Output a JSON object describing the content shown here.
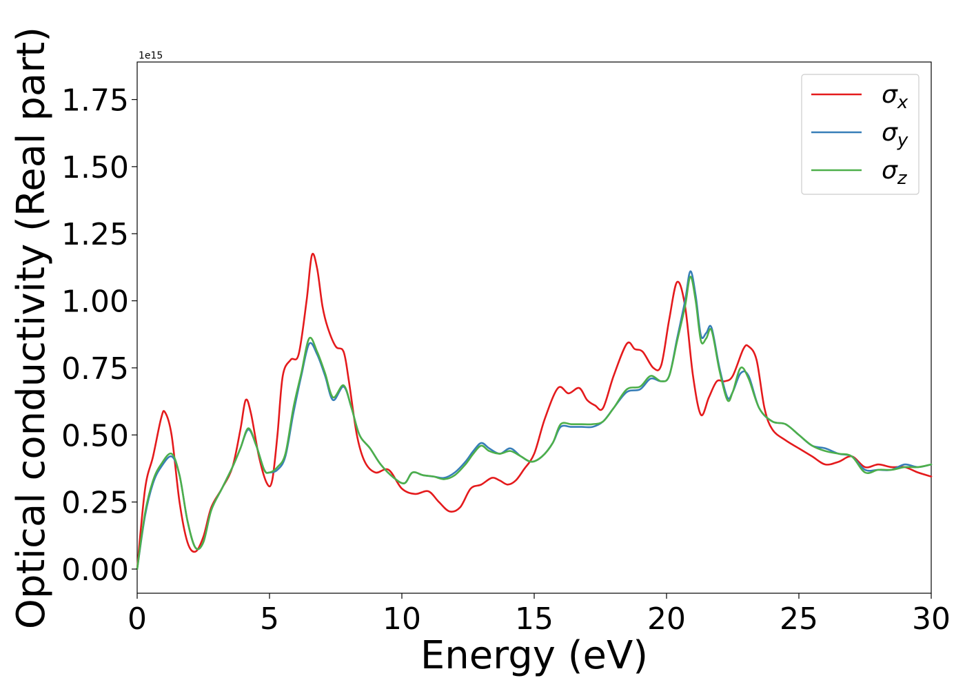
{
  "chart_data": {
    "type": "line",
    "xlabel": "Energy (eV)",
    "ylabel": "Optical conductivity (Real part)",
    "y_offset_label": "1e15",
    "xlim": [
      0,
      30
    ],
    "ylim": [
      -0.09,
      1.89
    ],
    "xticks": [
      0,
      5,
      10,
      15,
      20,
      25,
      30
    ],
    "xtick_labels": [
      "0",
      "5",
      "10",
      "15",
      "20",
      "25",
      "30"
    ],
    "yticks": [
      0.0,
      0.25,
      0.5,
      0.75,
      1.0,
      1.25,
      1.5,
      1.75
    ],
    "ytick_labels": [
      "0.00",
      "0.25",
      "0.50",
      "0.75",
      "1.00",
      "1.25",
      "1.50",
      "1.75"
    ],
    "grid": false,
    "legend_position": "top-right",
    "series": [
      {
        "name": "σ",
        "subscript": "x",
        "color": "#e41a1c",
        "x": [
          0,
          0.3,
          0.6,
          0.9,
          1.05,
          1.3,
          1.6,
          1.9,
          2.2,
          2.5,
          2.8,
          3.2,
          3.6,
          3.9,
          4.1,
          4.3,
          4.6,
          4.9,
          5.1,
          5.3,
          5.5,
          5.8,
          6.1,
          6.4,
          6.6,
          6.8,
          7.0,
          7.2,
          7.5,
          7.8,
          8.0,
          8.3,
          8.6,
          9.0,
          9.5,
          10.0,
          10.5,
          11.0,
          11.4,
          11.8,
          12.2,
          12.6,
          13.0,
          13.4,
          13.7,
          14.0,
          14.3,
          14.6,
          15.0,
          15.4,
          15.9,
          16.3,
          16.7,
          17.0,
          17.3,
          17.6,
          18.0,
          18.5,
          18.8,
          19.1,
          19.5,
          19.8,
          20.1,
          20.4,
          20.7,
          21.0,
          21.3,
          21.6,
          21.9,
          22.2,
          22.5,
          22.9,
          23.1,
          23.4,
          23.7,
          24.0,
          24.5,
          25.0,
          25.5,
          26.0,
          26.5,
          27.0,
          27.5,
          28.0,
          28.5,
          29.0,
          29.5,
          30.0
        ],
        "y": [
          0.0,
          0.3,
          0.42,
          0.56,
          0.585,
          0.5,
          0.25,
          0.1,
          0.065,
          0.12,
          0.23,
          0.3,
          0.38,
          0.52,
          0.63,
          0.58,
          0.42,
          0.32,
          0.33,
          0.5,
          0.72,
          0.78,
          0.8,
          1.0,
          1.17,
          1.12,
          0.98,
          0.9,
          0.83,
          0.81,
          0.7,
          0.5,
          0.4,
          0.36,
          0.37,
          0.3,
          0.28,
          0.29,
          0.25,
          0.215,
          0.23,
          0.3,
          0.315,
          0.34,
          0.33,
          0.315,
          0.33,
          0.37,
          0.43,
          0.56,
          0.675,
          0.655,
          0.675,
          0.63,
          0.61,
          0.6,
          0.72,
          0.84,
          0.82,
          0.81,
          0.75,
          0.76,
          0.93,
          1.07,
          0.98,
          0.72,
          0.575,
          0.64,
          0.7,
          0.7,
          0.72,
          0.82,
          0.83,
          0.78,
          0.6,
          0.52,
          0.48,
          0.45,
          0.42,
          0.39,
          0.4,
          0.42,
          0.38,
          0.39,
          0.38,
          0.38,
          0.36,
          0.345
        ]
      },
      {
        "name": "σ",
        "subscript": "y",
        "color": "#377eb8",
        "x": [
          0,
          0.3,
          0.6,
          0.9,
          1.3,
          1.6,
          1.9,
          2.2,
          2.5,
          2.8,
          3.2,
          3.6,
          3.9,
          4.2,
          4.5,
          4.8,
          5.0,
          5.3,
          5.6,
          5.9,
          6.2,
          6.5,
          6.8,
          7.1,
          7.4,
          7.8,
          8.1,
          8.4,
          8.8,
          9.2,
          9.7,
          10.1,
          10.4,
          10.8,
          11.2,
          11.6,
          12.0,
          12.4,
          12.7,
          13.0,
          13.3,
          13.7,
          14.1,
          14.5,
          14.9,
          15.3,
          15.7,
          16.0,
          16.4,
          16.8,
          17.2,
          17.6,
          18.0,
          18.5,
          19.0,
          19.4,
          19.8,
          20.1,
          20.4,
          20.7,
          20.9,
          21.1,
          21.3,
          21.5,
          21.7,
          22.0,
          22.3,
          22.5,
          22.8,
          23.1,
          23.5,
          24.0,
          24.5,
          25.0,
          25.5,
          26.0,
          26.5,
          27.0,
          27.5,
          28.0,
          28.5,
          29.0,
          29.5,
          30.0
        ],
        "y": [
          0.0,
          0.2,
          0.32,
          0.38,
          0.42,
          0.35,
          0.18,
          0.08,
          0.1,
          0.22,
          0.3,
          0.38,
          0.45,
          0.52,
          0.46,
          0.37,
          0.36,
          0.37,
          0.42,
          0.58,
          0.72,
          0.84,
          0.8,
          0.72,
          0.63,
          0.68,
          0.6,
          0.5,
          0.45,
          0.39,
          0.34,
          0.32,
          0.36,
          0.35,
          0.345,
          0.34,
          0.36,
          0.4,
          0.44,
          0.47,
          0.45,
          0.43,
          0.45,
          0.42,
          0.4,
          0.42,
          0.47,
          0.53,
          0.53,
          0.53,
          0.53,
          0.55,
          0.6,
          0.66,
          0.67,
          0.71,
          0.7,
          0.72,
          0.86,
          1.0,
          1.11,
          1.02,
          0.87,
          0.88,
          0.9,
          0.75,
          0.64,
          0.66,
          0.73,
          0.72,
          0.6,
          0.55,
          0.54,
          0.5,
          0.46,
          0.45,
          0.43,
          0.42,
          0.37,
          0.37,
          0.37,
          0.39,
          0.38,
          0.39
        ]
      },
      {
        "name": "σ",
        "subscript": "z",
        "color": "#4daf4a",
        "x": [
          0,
          0.3,
          0.6,
          0.9,
          1.3,
          1.6,
          1.9,
          2.2,
          2.5,
          2.8,
          3.2,
          3.6,
          3.9,
          4.2,
          4.5,
          4.8,
          5.0,
          5.3,
          5.6,
          5.9,
          6.2,
          6.5,
          6.8,
          7.1,
          7.4,
          7.8,
          8.1,
          8.4,
          8.8,
          9.2,
          9.7,
          10.1,
          10.4,
          10.8,
          11.2,
          11.6,
          12.0,
          12.4,
          12.7,
          13.0,
          13.3,
          13.7,
          14.1,
          14.5,
          14.9,
          15.3,
          15.7,
          16.0,
          16.4,
          16.8,
          17.2,
          17.6,
          18.0,
          18.5,
          19.0,
          19.4,
          19.8,
          20.1,
          20.4,
          20.7,
          20.9,
          21.1,
          21.3,
          21.5,
          21.7,
          22.0,
          22.3,
          22.5,
          22.8,
          23.1,
          23.5,
          24.0,
          24.5,
          25.0,
          25.5,
          26.0,
          26.5,
          27.0,
          27.5,
          28.0,
          28.5,
          29.0,
          29.5,
          30.0
        ],
        "y": [
          0.0,
          0.21,
          0.33,
          0.39,
          0.43,
          0.35,
          0.18,
          0.08,
          0.1,
          0.22,
          0.3,
          0.38,
          0.45,
          0.525,
          0.46,
          0.37,
          0.36,
          0.38,
          0.43,
          0.6,
          0.73,
          0.86,
          0.81,
          0.73,
          0.64,
          0.685,
          0.6,
          0.5,
          0.45,
          0.39,
          0.34,
          0.32,
          0.36,
          0.35,
          0.345,
          0.335,
          0.35,
          0.39,
          0.43,
          0.46,
          0.44,
          0.43,
          0.44,
          0.42,
          0.4,
          0.42,
          0.47,
          0.54,
          0.54,
          0.54,
          0.54,
          0.55,
          0.6,
          0.67,
          0.68,
          0.72,
          0.7,
          0.72,
          0.85,
          0.98,
          1.09,
          1.0,
          0.85,
          0.86,
          0.89,
          0.74,
          0.63,
          0.66,
          0.75,
          0.71,
          0.6,
          0.55,
          0.54,
          0.5,
          0.46,
          0.44,
          0.43,
          0.42,
          0.36,
          0.37,
          0.37,
          0.38,
          0.38,
          0.39
        ]
      }
    ]
  }
}
